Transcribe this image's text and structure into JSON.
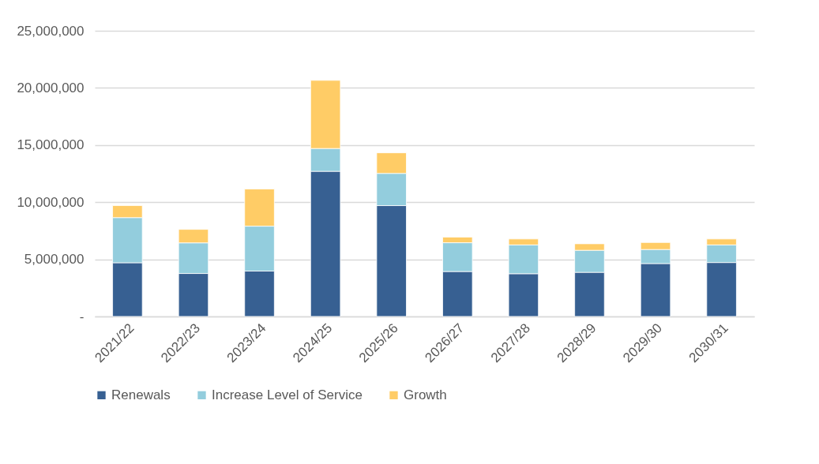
{
  "chart_data": {
    "type": "bar",
    "stacked": true,
    "categories": [
      "2021/22",
      "2022/23",
      "2023/24",
      "2024/25",
      "2025/26",
      "2026/27",
      "2027/28",
      "2028/29",
      "2029/30",
      "2030/31"
    ],
    "series": [
      {
        "name": "Renewals",
        "color": "#376092",
        "values": [
          4700000,
          3760000,
          3970000,
          12700000,
          9700000,
          3930000,
          3740000,
          3860000,
          4630000,
          4720000
        ]
      },
      {
        "name": "Increase Level of Service",
        "color": "#93cddd",
        "values": [
          3950000,
          2680000,
          3930000,
          2000000,
          2820000,
          2520000,
          2520000,
          1930000,
          1230000,
          1540000
        ]
      },
      {
        "name": "Growth",
        "color": "#ffcc66",
        "values": [
          1050000,
          1180000,
          3250000,
          5960000,
          1800000,
          490000,
          520000,
          570000,
          610000,
          520000
        ]
      }
    ],
    "ylim": [
      0,
      25000000
    ],
    "yticks": [
      {
        "value": 0,
        "label": "-"
      },
      {
        "value": 5000000,
        "label": "5,000,000"
      },
      {
        "value": 10000000,
        "label": "10,000,000"
      },
      {
        "value": 15000000,
        "label": "15,000,000"
      },
      {
        "value": 20000000,
        "label": "20,000,000"
      },
      {
        "value": 25000000,
        "label": "25,000,000"
      }
    ],
    "grid": "y",
    "legend": "bottom"
  }
}
